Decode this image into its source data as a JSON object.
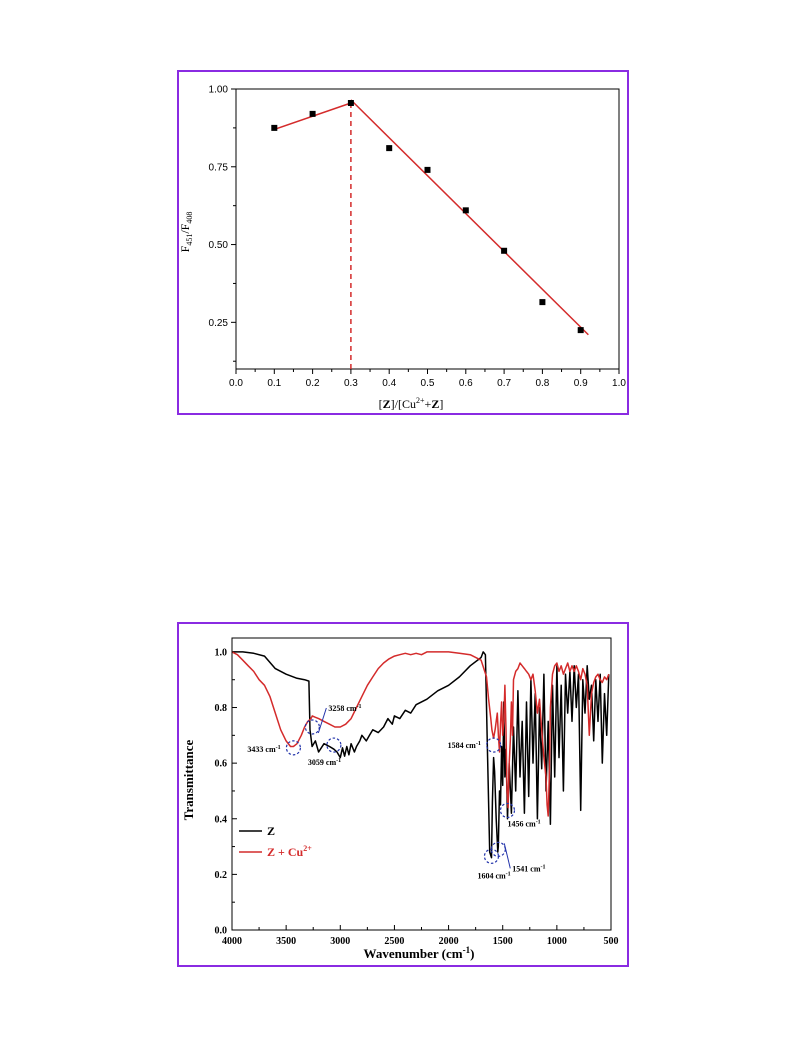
{
  "chart_data": [
    {
      "type": "scatter",
      "title": "",
      "xlabel": "[Z]/[Cu2++Z]",
      "ylabel": "F451/F408",
      "xlim": [
        0.0,
        1.0
      ],
      "ylim": [
        0.1,
        1.0
      ],
      "x_ticks": [
        "0.0",
        "0.1",
        "0.2",
        "0.3",
        "0.4",
        "0.5",
        "0.6",
        "0.7",
        "0.8",
        "0.9",
        "1.0"
      ],
      "y_ticks": [
        "0.25",
        "0.50",
        "0.75",
        "1.00"
      ],
      "points": [
        {
          "x": 0.1,
          "y": 0.875
        },
        {
          "x": 0.2,
          "y": 0.92
        },
        {
          "x": 0.3,
          "y": 0.955
        },
        {
          "x": 0.4,
          "y": 0.81
        },
        {
          "x": 0.5,
          "y": 0.74
        },
        {
          "x": 0.6,
          "y": 0.61
        },
        {
          "x": 0.7,
          "y": 0.48
        },
        {
          "x": 0.8,
          "y": 0.315
        },
        {
          "x": 0.9,
          "y": 0.225
        }
      ],
      "fit_lines": [
        {
          "x": [
            0.1,
            0.3
          ],
          "y": [
            0.87,
            0.955
          ]
        },
        {
          "x": [
            0.3,
            0.92
          ],
          "y": [
            0.965,
            0.21
          ]
        }
      ],
      "vline_x": 0.3,
      "colors": {
        "fit": "#d42b2b",
        "points": "#000000"
      }
    },
    {
      "type": "line",
      "title": "",
      "xlabel": "Wavenumber (cm-1)",
      "ylabel": "Transmittance",
      "xlim": [
        4000,
        500
      ],
      "ylim": [
        0.0,
        1.05
      ],
      "x_ticks": [
        "4000",
        "3500",
        "3000",
        "2500",
        "2000",
        "1500",
        "1000",
        "500"
      ],
      "y_ticks": [
        "0.0",
        "0.2",
        "0.4",
        "0.6",
        "0.8",
        "1.0"
      ],
      "legend": {
        "position": "left",
        "entries": [
          "Z",
          "Z + Cu2+"
        ]
      },
      "series": [
        {
          "name": "Z",
          "color": "#000000",
          "x": [
            4000,
            3900,
            3800,
            3700,
            3600,
            3500,
            3400,
            3330,
            3290,
            3280,
            3260,
            3230,
            3200,
            3150,
            3100,
            3059,
            3030,
            3000,
            2980,
            2960,
            2940,
            2920,
            2900,
            2870,
            2850,
            2820,
            2800,
            2760,
            2730,
            2700,
            2650,
            2600,
            2560,
            2520,
            2500,
            2450,
            2400,
            2350,
            2300,
            2200,
            2100,
            2000,
            1900,
            1800,
            1700,
            1680,
            1660,
            1640,
            1620,
            1604,
            1595,
            1584,
            1575,
            1560,
            1545,
            1541,
            1530,
            1520,
            1510,
            1500,
            1490,
            1480,
            1470,
            1456,
            1440,
            1420,
            1400,
            1380,
            1360,
            1340,
            1320,
            1300,
            1280,
            1260,
            1240,
            1220,
            1200,
            1180,
            1160,
            1140,
            1120,
            1100,
            1080,
            1060,
            1040,
            1020,
            1000,
            980,
            960,
            940,
            920,
            900,
            880,
            860,
            840,
            820,
            800,
            780,
            760,
            740,
            720,
            700,
            680,
            660,
            640,
            620,
            600,
            580,
            560,
            540,
            520
          ],
          "y": [
            1.0,
            1.0,
            0.995,
            0.985,
            0.94,
            0.92,
            0.905,
            0.9,
            0.895,
            0.72,
            0.66,
            0.68,
            0.64,
            0.67,
            0.66,
            0.65,
            0.64,
            0.62,
            0.655,
            0.625,
            0.66,
            0.63,
            0.67,
            0.64,
            0.66,
            0.68,
            0.7,
            0.68,
            0.7,
            0.72,
            0.71,
            0.73,
            0.76,
            0.74,
            0.77,
            0.76,
            0.79,
            0.78,
            0.81,
            0.83,
            0.86,
            0.88,
            0.91,
            0.95,
            0.98,
            1.0,
            0.99,
            0.62,
            0.28,
            0.26,
            0.46,
            0.62,
            0.57,
            0.4,
            0.28,
            0.3,
            0.5,
            0.45,
            0.66,
            0.52,
            0.82,
            0.55,
            0.65,
            0.4,
            0.6,
            0.42,
            0.73,
            0.5,
            0.86,
            0.55,
            0.75,
            0.42,
            0.82,
            0.48,
            0.9,
            0.6,
            0.85,
            0.4,
            0.8,
            0.58,
            0.92,
            0.5,
            0.75,
            0.38,
            0.88,
            0.55,
            0.95,
            0.62,
            0.88,
            0.5,
            0.92,
            0.78,
            0.93,
            0.75,
            0.95,
            0.8,
            0.92,
            0.43,
            0.9,
            0.78,
            0.95,
            0.83,
            0.88,
            0.68,
            0.9,
            0.75,
            0.92,
            0.6,
            0.85,
            0.7,
            0.92
          ]
        },
        {
          "name": "Z + Cu2+",
          "color": "#d42b2b",
          "x": [
            4000,
            3950,
            3900,
            3850,
            3800,
            3750,
            3700,
            3650,
            3600,
            3550,
            3500,
            3460,
            3433,
            3400,
            3360,
            3330,
            3300,
            3270,
            3258,
            3230,
            3200,
            3150,
            3100,
            3050,
            3000,
            2950,
            2900,
            2850,
            2800,
            2750,
            2700,
            2650,
            2600,
            2550,
            2500,
            2450,
            2400,
            2350,
            2300,
            2250,
            2200,
            2100,
            2000,
            1900,
            1800,
            1700,
            1650,
            1630,
            1610,
            1600,
            1590,
            1584,
            1570,
            1560,
            1550,
            1540,
            1530,
            1520,
            1510,
            1500,
            1490,
            1480,
            1470,
            1460,
            1450,
            1440,
            1430,
            1420,
            1410,
            1400,
            1380,
            1360,
            1340,
            1320,
            1300,
            1280,
            1260,
            1240,
            1220,
            1200,
            1180,
            1160,
            1140,
            1120,
            1100,
            1090,
            1080,
            1070,
            1060,
            1040,
            1020,
            1000,
            980,
            960,
            940,
            920,
            900,
            880,
            860,
            840,
            820,
            800,
            780,
            760,
            740,
            720,
            700,
            680,
            660,
            640,
            620,
            600,
            580,
            560,
            540,
            520
          ],
          "y": [
            1.0,
            0.99,
            0.97,
            0.95,
            0.93,
            0.9,
            0.88,
            0.84,
            0.78,
            0.72,
            0.68,
            0.66,
            0.66,
            0.67,
            0.7,
            0.73,
            0.75,
            0.76,
            0.77,
            0.765,
            0.76,
            0.75,
            0.74,
            0.73,
            0.73,
            0.74,
            0.76,
            0.8,
            0.84,
            0.88,
            0.91,
            0.94,
            0.96,
            0.975,
            0.985,
            0.99,
            0.995,
            0.99,
            0.995,
            0.99,
            1.0,
            1.0,
            1.0,
            0.995,
            0.99,
            0.97,
            0.91,
            0.83,
            0.76,
            0.72,
            0.7,
            0.69,
            0.72,
            0.75,
            0.78,
            0.7,
            0.64,
            0.74,
            0.82,
            0.7,
            0.75,
            0.88,
            0.72,
            0.5,
            0.44,
            0.6,
            0.68,
            0.82,
            0.7,
            0.9,
            0.93,
            0.94,
            0.96,
            0.95,
            0.94,
            0.93,
            0.92,
            0.9,
            0.92,
            0.86,
            0.78,
            0.83,
            0.72,
            0.62,
            0.55,
            0.45,
            0.41,
            0.55,
            0.8,
            0.92,
            0.95,
            0.96,
            0.93,
            0.95,
            0.92,
            0.94,
            0.96,
            0.93,
            0.95,
            0.93,
            0.95,
            0.93,
            0.9,
            0.94,
            0.92,
            0.88,
            0.7,
            0.85,
            0.89,
            0.91,
            0.92,
            0.9,
            0.89,
            0.91,
            0.9,
            0.92
          ]
        }
      ],
      "annotations": [
        {
          "label": "3433 cm-1",
          "x": 3433,
          "y": 0.655
        },
        {
          "label": "3258 cm-1",
          "x": 3258,
          "y": 0.73
        },
        {
          "label": "3059 cm-1",
          "x": 3059,
          "y": 0.665
        },
        {
          "label": "1584 cm-1",
          "x": 1584,
          "y": 0.665
        },
        {
          "label": "1604 cm-1",
          "x": 1604,
          "y": 0.265
        },
        {
          "label": "1541 cm-1",
          "x": 1541,
          "y": 0.29
        },
        {
          "label": "1456 cm-1",
          "x": 1456,
          "y": 0.43
        }
      ]
    }
  ],
  "labels": {
    "top_y": {
      "main": "F",
      "sub1": "451",
      "sep": "/F",
      "sub2": "408"
    },
    "top_x": {
      "p1": "[",
      "bold": "Z",
      "p2": "]/[Cu",
      "sup": "2+",
      "p3": "+",
      "bold2": "Z",
      "p4": "]"
    },
    "ir_x": {
      "main": "Wavenumber (cm",
      "sup": "-1",
      "end": ")"
    },
    "ir_y": "Transmittance",
    "legend_z": "Z",
    "legend_cu": {
      "main": "Z + Cu",
      "sup": "2+"
    }
  }
}
